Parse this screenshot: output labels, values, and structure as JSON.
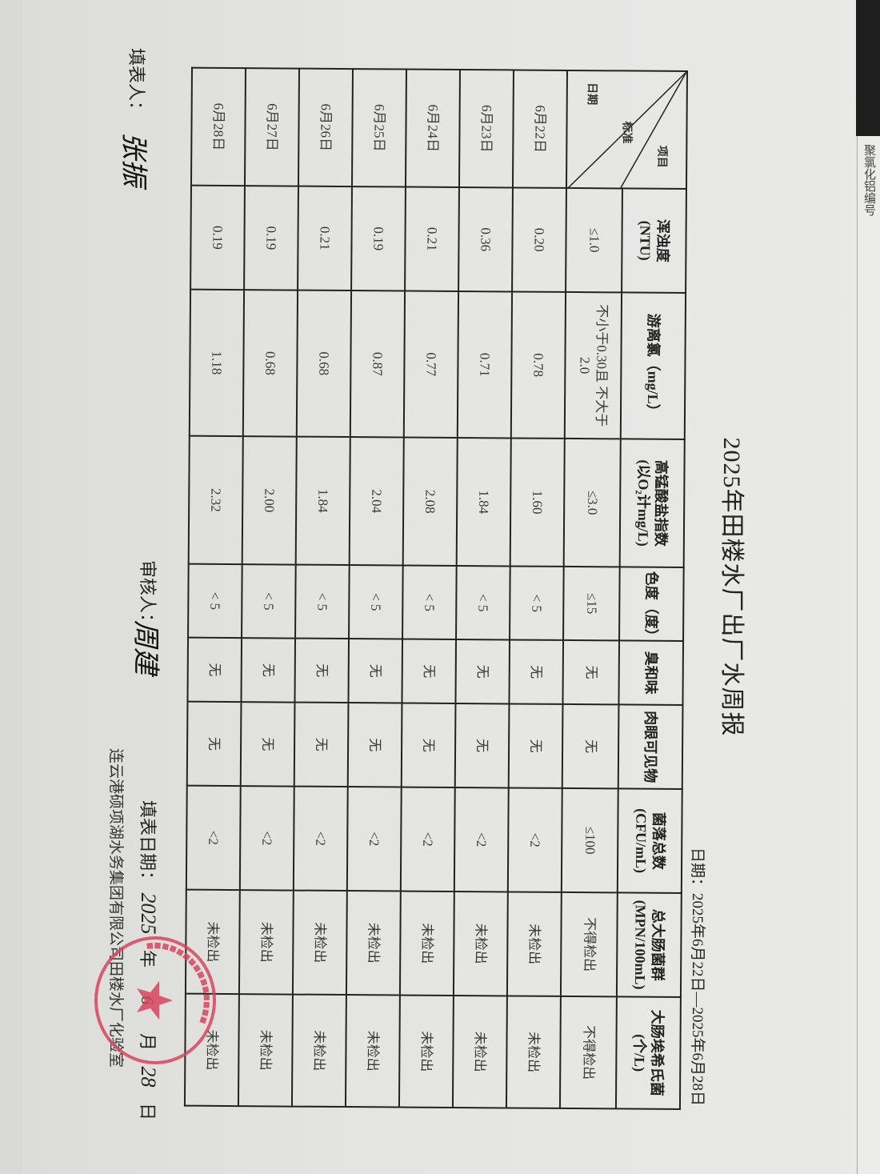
{
  "title": "2025年田楼水厂出厂水周报",
  "date_range": "日期：2025年6月22日—2025年6月28日",
  "header_cell": {
    "item": "项目",
    "standard": "标准",
    "date": "日期"
  },
  "columns": [
    {
      "name": "浑浊度",
      "unit": "(NTU)",
      "standard": "≤1.0"
    },
    {
      "name": "游离氯（mg/L）",
      "unit": "",
      "standard": "不小于0.30且 不大于2.0"
    },
    {
      "name": "高锰酸盐指数",
      "unit": "(以O₂计mg/L)",
      "standard": "≤3.0"
    },
    {
      "name": "色度（度）",
      "unit": "",
      "standard": "≤15"
    },
    {
      "name": "臭和味",
      "unit": "",
      "standard": "无"
    },
    {
      "name": "肉眼可见物",
      "unit": "",
      "standard": "无"
    },
    {
      "name": "菌落总数",
      "unit": "(CFU/mL)",
      "standard": "≤100"
    },
    {
      "name": "总大肠菌群",
      "unit": "(MPN/100mL)",
      "standard": "不得检出"
    },
    {
      "name": "大肠埃希氏菌",
      "unit": "(个/L)",
      "standard": "不得检出"
    }
  ],
  "rows": [
    {
      "date": "6月22日",
      "values": [
        "0.20",
        "0.78",
        "1.60",
        "< 5",
        "无",
        "无",
        "<2",
        "未检出",
        "未检出"
      ]
    },
    {
      "date": "6月23日",
      "values": [
        "0.36",
        "0.71",
        "1.84",
        "< 5",
        "无",
        "无",
        "<2",
        "未检出",
        "未检出"
      ]
    },
    {
      "date": "6月24日",
      "values": [
        "0.21",
        "0.77",
        "2.08",
        "< 5",
        "无",
        "无",
        "<2",
        "未检出",
        "未检出"
      ]
    },
    {
      "date": "6月25日",
      "values": [
        "0.19",
        "0.87",
        "2.04",
        "< 5",
        "无",
        "无",
        "<2",
        "未检出",
        "未检出"
      ]
    },
    {
      "date": "6月26日",
      "values": [
        "0.21",
        "0.68",
        "1.84",
        "< 5",
        "无",
        "无",
        "<2",
        "未检出",
        "未检出"
      ]
    },
    {
      "date": "6月27日",
      "values": [
        "0.19",
        "0.68",
        "2.00",
        "< 5",
        "无",
        "无",
        "<2",
        "未检出",
        "未检出"
      ]
    },
    {
      "date": "6月28日",
      "values": [
        "0.19",
        "1.18",
        "2.32",
        "< 5",
        "无",
        "无",
        "<2",
        "未检出",
        "未检出"
      ]
    }
  ],
  "footer": {
    "filler_label": "填表人：",
    "filler_signature": "张振",
    "reviewer_label": "审核人：",
    "reviewer_signature": "周建",
    "fill_date_label": "填表日期：",
    "fill_date_year": "2025",
    "fill_date_year_unit": "年",
    "fill_date_month": "6",
    "fill_date_month_unit": "月",
    "fill_date_day": "28",
    "fill_date_day_unit": "日",
    "organization": "连云港硕项湖水务集团有限公司田楼水厂化验室"
  },
  "stamp": {
    "text": "灌南县田楼自来水有限公司化验专用章",
    "color": "#d8455e"
  },
  "other_paper": {
    "text": "聚氯化铝编号"
  }
}
